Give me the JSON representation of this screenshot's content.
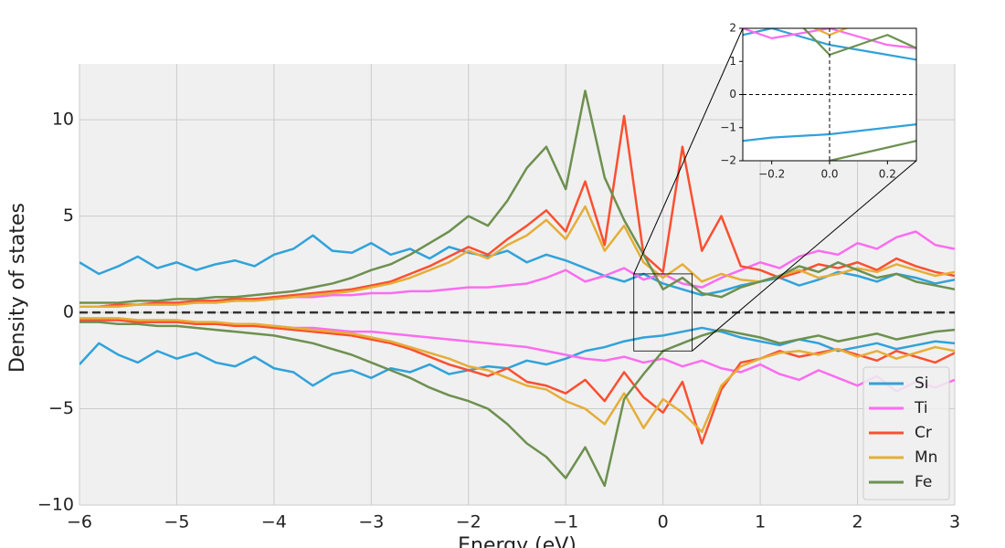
{
  "chart_data": {
    "type": "line",
    "xlabel": "Energy (eV)",
    "ylabel": "Density of states",
    "xlim": [
      -6,
      3
    ],
    "ylim": [
      -10,
      12.9
    ],
    "xticks": [
      {
        "value": -6,
        "label": "−6"
      },
      {
        "value": -5,
        "label": "−5"
      },
      {
        "value": -4,
        "label": "−4"
      },
      {
        "value": -3,
        "label": "−3"
      },
      {
        "value": -2,
        "label": "−2"
      },
      {
        "value": -1,
        "label": "−1"
      },
      0,
      1,
      2,
      3
    ],
    "yticks": [
      {
        "value": -10,
        "label": "−10"
      },
      {
        "value": -5,
        "label": "−5"
      },
      0,
      5,
      10
    ],
    "grid": true,
    "zero_line": true,
    "legend": "lower right",
    "x": [
      -6,
      -5.8,
      -5.6,
      -5.4,
      -5.2,
      -5,
      -4.8,
      -4.6,
      -4.4,
      -4.2,
      -4,
      -3.8,
      -3.6,
      -3.4,
      -3.2,
      -3,
      -2.8,
      -2.6,
      -2.4,
      -2.2,
      -2,
      -1.8,
      -1.6,
      -1.4,
      -1.2,
      -1,
      -0.8,
      -0.6,
      -0.4,
      -0.2,
      0,
      0.2,
      0.4,
      0.6,
      0.8,
      1,
      1.2,
      1.4,
      1.6,
      1.8,
      2,
      2.2,
      2.4,
      2.6,
      2.8,
      3
    ],
    "series": [
      {
        "name": "Si",
        "color": "#30a2da",
        "values": [
          2.6,
          2.0,
          2.4,
          2.9,
          2.3,
          2.6,
          2.2,
          2.5,
          2.7,
          2.4,
          3.0,
          3.3,
          4.0,
          3.2,
          3.1,
          3.6,
          3.0,
          3.3,
          2.8,
          3.4,
          3.1,
          2.9,
          3.2,
          2.6,
          3.0,
          2.7,
          2.3,
          1.9,
          1.6,
          2.0,
          1.5,
          1.2,
          0.9,
          1.1,
          1.4,
          1.6,
          1.8,
          1.4,
          1.7,
          2.1,
          1.9,
          1.6,
          2.0,
          1.8,
          1.5,
          1.7
        ],
        "values_down": [
          -2.7,
          -1.6,
          -2.2,
          -2.6,
          -2.0,
          -2.4,
          -2.1,
          -2.6,
          -2.8,
          -2.3,
          -2.9,
          -3.1,
          -3.8,
          -3.2,
          -3.0,
          -3.4,
          -2.9,
          -3.1,
          -2.7,
          -3.2,
          -3.0,
          -2.8,
          -2.9,
          -2.5,
          -2.7,
          -2.4,
          -2.0,
          -1.8,
          -1.5,
          -1.3,
          -1.2,
          -1.0,
          -0.8,
          -1.0,
          -1.3,
          -1.5,
          -1.7,
          -1.4,
          -1.6,
          -2.0,
          -1.8,
          -1.6,
          -1.9,
          -1.7,
          -1.5,
          -1.6
        ]
      },
      {
        "name": "Ti",
        "color": "#fc6cf0",
        "values": [
          0.3,
          0.3,
          0.4,
          0.4,
          0.5,
          0.5,
          0.5,
          0.6,
          0.6,
          0.7,
          0.7,
          0.8,
          0.8,
          0.9,
          0.9,
          1.0,
          1.0,
          1.1,
          1.1,
          1.2,
          1.3,
          1.3,
          1.4,
          1.5,
          1.8,
          2.2,
          1.6,
          1.9,
          2.3,
          1.7,
          2.0,
          1.5,
          1.3,
          1.8,
          2.2,
          2.6,
          2.3,
          2.9,
          3.2,
          3.0,
          3.6,
          3.3,
          3.9,
          4.2,
          3.5,
          3.3
        ],
        "values_down": [
          -0.4,
          -0.4,
          -0.4,
          -0.5,
          -0.5,
          -0.5,
          -0.6,
          -0.6,
          -0.6,
          -0.7,
          -0.7,
          -0.8,
          -0.8,
          -0.9,
          -1.0,
          -1.0,
          -1.1,
          -1.2,
          -1.3,
          -1.4,
          -1.5,
          -1.6,
          -1.7,
          -1.8,
          -2.0,
          -2.2,
          -2.4,
          -2.5,
          -2.3,
          -2.6,
          -2.4,
          -2.8,
          -2.5,
          -2.9,
          -3.1,
          -2.7,
          -3.2,
          -3.5,
          -3.0,
          -3.4,
          -3.8,
          -3.3,
          -4.1,
          -3.6,
          -3.9,
          -3.5
        ]
      },
      {
        "name": "Cr",
        "color": "#fc4f30",
        "values": [
          0.3,
          0.3,
          0.4,
          0.4,
          0.5,
          0.5,
          0.6,
          0.6,
          0.7,
          0.7,
          0.8,
          0.9,
          1.0,
          1.1,
          1.2,
          1.4,
          1.6,
          2.0,
          2.4,
          2.9,
          3.4,
          3.0,
          3.8,
          4.5,
          5.3,
          4.2,
          6.8,
          3.5,
          10.2,
          3.0,
          2.1,
          8.6,
          3.2,
          5.0,
          2.4,
          2.2,
          1.8,
          2.1,
          2.5,
          2.3,
          2.6,
          2.2,
          2.8,
          2.4,
          2.1,
          1.9
        ],
        "values_down": [
          -0.4,
          -0.4,
          -0.4,
          -0.5,
          -0.5,
          -0.5,
          -0.6,
          -0.6,
          -0.7,
          -0.7,
          -0.8,
          -0.9,
          -1.0,
          -1.1,
          -1.2,
          -1.4,
          -1.6,
          -1.9,
          -2.3,
          -2.7,
          -3.0,
          -3.3,
          -2.9,
          -3.6,
          -3.8,
          -4.2,
          -3.5,
          -4.6,
          -3.1,
          -4.4,
          -5.2,
          -3.6,
          -6.8,
          -4.0,
          -2.6,
          -2.4,
          -2.0,
          -2.3,
          -2.1,
          -1.9,
          -2.2,
          -2.5,
          -2.0,
          -2.3,
          -2.6,
          -2.1
        ]
      },
      {
        "name": "Mn",
        "color": "#e5ae38",
        "values": [
          0.3,
          0.3,
          0.3,
          0.4,
          0.4,
          0.4,
          0.5,
          0.5,
          0.6,
          0.6,
          0.7,
          0.8,
          0.9,
          1.0,
          1.1,
          1.3,
          1.5,
          1.8,
          2.2,
          2.6,
          3.2,
          2.8,
          3.5,
          4.0,
          4.8,
          3.8,
          5.5,
          3.2,
          4.5,
          2.6,
          1.8,
          2.5,
          1.6,
          2.0,
          1.7,
          1.6,
          1.9,
          2.2,
          1.8,
          2.0,
          2.3,
          2.1,
          2.5,
          2.2,
          1.9,
          2.1
        ],
        "values_down": [
          -0.3,
          -0.3,
          -0.3,
          -0.4,
          -0.4,
          -0.4,
          -0.5,
          -0.5,
          -0.6,
          -0.6,
          -0.7,
          -0.8,
          -0.9,
          -1.0,
          -1.1,
          -1.3,
          -1.5,
          -1.8,
          -2.1,
          -2.4,
          -2.8,
          -3.0,
          -3.4,
          -3.8,
          -4.0,
          -4.6,
          -5.0,
          -5.8,
          -4.2,
          -6.0,
          -4.5,
          -5.2,
          -6.2,
          -3.8,
          -2.8,
          -2.4,
          -2.1,
          -2.0,
          -2.2,
          -1.9,
          -2.3,
          -2.0,
          -2.4,
          -2.1,
          -1.8,
          -2.0
        ]
      },
      {
        "name": "Fe",
        "color": "#6d904f",
        "values": [
          0.5,
          0.5,
          0.5,
          0.6,
          0.6,
          0.7,
          0.7,
          0.8,
          0.8,
          0.9,
          1.0,
          1.1,
          1.3,
          1.5,
          1.8,
          2.2,
          2.5,
          3.0,
          3.6,
          4.2,
          5.0,
          4.5,
          5.8,
          7.5,
          8.6,
          6.4,
          11.5,
          7.0,
          4.8,
          3.0,
          1.2,
          1.8,
          1.0,
          0.8,
          1.3,
          1.6,
          1.9,
          2.4,
          2.1,
          2.6,
          2.2,
          1.8,
          2.0,
          1.6,
          1.4,
          1.2
        ],
        "values_down": [
          -0.5,
          -0.5,
          -0.6,
          -0.6,
          -0.7,
          -0.7,
          -0.8,
          -0.9,
          -1.0,
          -1.1,
          -1.2,
          -1.4,
          -1.6,
          -1.9,
          -2.2,
          -2.6,
          -3.0,
          -3.4,
          -3.9,
          -4.3,
          -4.6,
          -5.0,
          -5.8,
          -6.8,
          -7.5,
          -8.6,
          -7.0,
          -9.0,
          -4.5,
          -3.2,
          -2.0,
          -1.6,
          -1.2,
          -0.9,
          -1.1,
          -1.3,
          -1.6,
          -1.4,
          -1.2,
          -1.5,
          -1.3,
          -1.1,
          -1.4,
          -1.2,
          -1.0,
          -0.9
        ]
      }
    ],
    "inset": {
      "xlim": [
        -0.3,
        0.3
      ],
      "ylim": [
        -2,
        2
      ],
      "xticks": [
        {
          "value": -0.2,
          "label": "−0.2"
        },
        {
          "value": 0,
          "label": "0.0"
        },
        {
          "value": 0.2,
          "label": "0.2"
        }
      ],
      "yticks": [
        {
          "value": -2,
          "label": "−2"
        },
        {
          "value": -1,
          "label": "−1"
        },
        0,
        1,
        2
      ],
      "crosshair": true
    }
  }
}
